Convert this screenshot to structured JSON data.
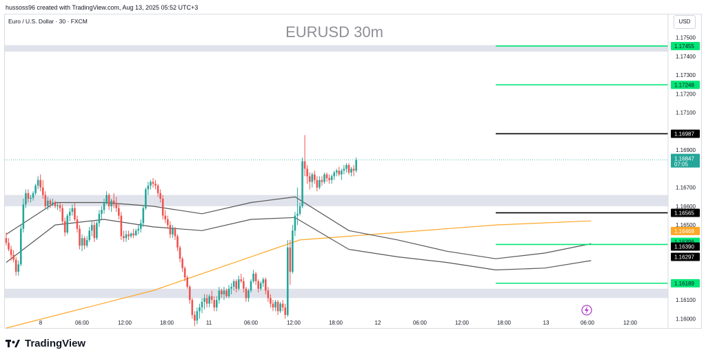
{
  "header": {
    "attribution": "hussoss96 created with TradingView.com, Aug 13, 2025 05:52 UTC+3"
  },
  "chart_header": {
    "symbol_line": "Euro / U.S. Dollar · 30 · FXCM",
    "title": "EURUSD 30m",
    "currency_button": "USD"
  },
  "footer": {
    "brand": "TradingView"
  },
  "chart_data": {
    "type": "candlestick",
    "title": "EURUSD 30m",
    "y_tick_labels": [
      "1.16000",
      "1.16100",
      "1.16500",
      "1.16600",
      "1.16700",
      "1.16900",
      "1.17100",
      "1.17200",
      "1.17300",
      "1.17400",
      "1.17500"
    ],
    "x_tick_labels": [
      "8",
      "06:00",
      "12:00",
      "18:00",
      "11",
      "06:00",
      "12:00",
      "18:00",
      "12",
      "06:00",
      "12:00",
      "18:00",
      "13",
      "06:00",
      "12:00"
    ],
    "ylim": [
      1.1595,
      1.1762
    ],
    "colors": {
      "up": "#26a69a",
      "down": "#ef5350",
      "ma": "#ffa726",
      "band": "#555555",
      "zone": "#e0e3eb"
    },
    "current_price": {
      "value": "1.16847",
      "countdown": "07:05"
    },
    "price_levels": [
      {
        "value": "1.17455",
        "color": "#00e676",
        "text_color": "#131722"
      },
      {
        "value": "1.17248",
        "color": "#00e676",
        "text_color": "#131722"
      },
      {
        "value": "1.16987",
        "color": "#000000",
        "text_color": "#ffffff"
      },
      {
        "value": "1.16565",
        "color": "#000000",
        "text_color": "#ffffff"
      },
      {
        "value": "1.16396",
        "color": "#00e676",
        "text_color": "#131722"
      },
      {
        "value": "1.16189",
        "color": "#00e676",
        "text_color": "#131722"
      }
    ],
    "series_labels": [
      {
        "value": "1.16468",
        "color": "#ffa726",
        "text_color": "#ffffff"
      },
      {
        "value": "1.16390",
        "color": "#000000",
        "text_color": "#ffffff"
      },
      {
        "value": "1.16297",
        "color": "#000000",
        "text_color": "#ffffff"
      }
    ],
    "zones": [
      {
        "from": 1.17425,
        "to": 1.1746
      },
      {
        "from": 1.166,
        "to": 1.1666
      },
      {
        "from": 1.1611,
        "to": 1.1616
      }
    ],
    "candles": [
      [
        1.1643,
        1.1646,
        1.1639,
        1.16405
      ],
      [
        1.16405,
        1.1643,
        1.1636,
        1.1637
      ],
      [
        1.1637,
        1.1639,
        1.1631,
        1.1634
      ],
      [
        1.1634,
        1.16365,
        1.163,
        1.16315
      ],
      [
        1.16315,
        1.1633,
        1.1623,
        1.1625
      ],
      [
        1.1625,
        1.1631,
        1.1623,
        1.1629
      ],
      [
        1.1629,
        1.165,
        1.1628,
        1.1648
      ],
      [
        1.1648,
        1.1664,
        1.1646,
        1.1661
      ],
      [
        1.1661,
        1.1669,
        1.1659,
        1.1667
      ],
      [
        1.1667,
        1.1669,
        1.1662,
        1.1664
      ],
      [
        1.1664,
        1.1666,
        1.1662,
        1.16645
      ],
      [
        1.16645,
        1.1668,
        1.1663,
        1.1667
      ],
      [
        1.1667,
        1.1672,
        1.1666,
        1.1671
      ],
      [
        1.1671,
        1.1676,
        1.1669,
        1.1674
      ],
      [
        1.1674,
        1.1677,
        1.1668,
        1.167
      ],
      [
        1.167,
        1.1674,
        1.1664,
        1.1666
      ],
      [
        1.1666,
        1.1668,
        1.1659,
        1.166
      ],
      [
        1.166,
        1.1665,
        1.1658,
        1.1663
      ],
      [
        1.1663,
        1.1664,
        1.1659,
        1.1661
      ],
      [
        1.1661,
        1.1664,
        1.166,
        1.1662
      ],
      [
        1.1662,
        1.1663,
        1.1659,
        1.166
      ],
      [
        1.166,
        1.1662,
        1.1658,
        1.16605
      ],
      [
        1.16605,
        1.1662,
        1.1657,
        1.1659
      ],
      [
        1.1659,
        1.1661,
        1.165,
        1.1652
      ],
      [
        1.1652,
        1.1654,
        1.1644,
        1.1646
      ],
      [
        1.1646,
        1.1656,
        1.1645,
        1.1655
      ],
      [
        1.1655,
        1.1659,
        1.1652,
        1.1657
      ],
      [
        1.1657,
        1.1661,
        1.1655,
        1.1659
      ],
      [
        1.1659,
        1.1662,
        1.1652,
        1.1653
      ],
      [
        1.1653,
        1.1655,
        1.1646,
        1.1648
      ],
      [
        1.1648,
        1.165,
        1.1637,
        1.1639
      ],
      [
        1.1639,
        1.1645,
        1.1636,
        1.1643
      ],
      [
        1.1643,
        1.1644,
        1.1637,
        1.1639
      ],
      [
        1.1639,
        1.1644,
        1.1638,
        1.1642
      ],
      [
        1.1642,
        1.1649,
        1.1641,
        1.1647
      ],
      [
        1.1647,
        1.1652,
        1.1644,
        1.165
      ],
      [
        1.165,
        1.1652,
        1.1641,
        1.1643
      ],
      [
        1.1643,
        1.1652,
        1.1642,
        1.1651
      ],
      [
        1.1651,
        1.1658,
        1.1649,
        1.1656
      ],
      [
        1.1656,
        1.166,
        1.1653,
        1.1658
      ],
      [
        1.1658,
        1.1664,
        1.1656,
        1.1662
      ],
      [
        1.1662,
        1.1668,
        1.1661,
        1.1666
      ],
      [
        1.1666,
        1.1667,
        1.1658,
        1.166
      ],
      [
        1.166,
        1.1664,
        1.1657,
        1.1663
      ],
      [
        1.1663,
        1.1667,
        1.1659,
        1.1661
      ],
      [
        1.1661,
        1.1665,
        1.1657,
        1.1659
      ],
      [
        1.1659,
        1.1661,
        1.1653,
        1.1655
      ],
      [
        1.1655,
        1.1657,
        1.1642,
        1.1644
      ],
      [
        1.1644,
        1.1647,
        1.1641,
        1.1643
      ],
      [
        1.1643,
        1.1647,
        1.1641,
        1.1645
      ],
      [
        1.1645,
        1.1647,
        1.1642,
        1.1644
      ],
      [
        1.1644,
        1.1646,
        1.1643,
        1.16455
      ],
      [
        1.16455,
        1.1648,
        1.1643,
        1.16445
      ],
      [
        1.16445,
        1.1648,
        1.1644,
        1.1647
      ],
      [
        1.1647,
        1.165,
        1.1645,
        1.1648
      ],
      [
        1.1648,
        1.1653,
        1.1646,
        1.1651
      ],
      [
        1.1651,
        1.166,
        1.1649,
        1.1659
      ],
      [
        1.1659,
        1.167,
        1.1658,
        1.1669
      ],
      [
        1.1669,
        1.1673,
        1.1666,
        1.1671
      ],
      [
        1.1671,
        1.1674,
        1.1669,
        1.1673
      ],
      [
        1.1673,
        1.1675,
        1.167,
        1.1672
      ],
      [
        1.1672,
        1.1674,
        1.1669,
        1.1671
      ],
      [
        1.1671,
        1.1672,
        1.1665,
        1.1667
      ],
      [
        1.1667,
        1.1669,
        1.1662,
        1.1664
      ],
      [
        1.1664,
        1.1666,
        1.1653,
        1.1655
      ],
      [
        1.1655,
        1.1658,
        1.1651,
        1.1653
      ],
      [
        1.1653,
        1.1655,
        1.1648,
        1.165
      ],
      [
        1.165,
        1.1652,
        1.1643,
        1.1645
      ],
      [
        1.1645,
        1.165,
        1.1643,
        1.1648
      ],
      [
        1.1648,
        1.1649,
        1.1642,
        1.1644
      ],
      [
        1.1644,
        1.1645,
        1.1636,
        1.1638
      ],
      [
        1.1638,
        1.1639,
        1.163,
        1.1632
      ],
      [
        1.1632,
        1.1633,
        1.1625,
        1.1627
      ],
      [
        1.1627,
        1.1628,
        1.162,
        1.1622
      ],
      [
        1.1622,
        1.1623,
        1.1616,
        1.1617
      ],
      [
        1.1617,
        1.1618,
        1.1608,
        1.161
      ],
      [
        1.161,
        1.1611,
        1.16,
        1.1602
      ],
      [
        1.1602,
        1.1604,
        1.1596,
        1.1599
      ],
      [
        1.1599,
        1.1606,
        1.1597,
        1.1604
      ],
      [
        1.1604,
        1.1608,
        1.16,
        1.1606
      ],
      [
        1.1606,
        1.1611,
        1.1603,
        1.1609
      ],
      [
        1.1609,
        1.1613,
        1.1605,
        1.1611
      ],
      [
        1.1611,
        1.1613,
        1.1606,
        1.1608
      ],
      [
        1.1608,
        1.1613,
        1.1606,
        1.1612
      ],
      [
        1.1612,
        1.1615,
        1.1608,
        1.161
      ],
      [
        1.161,
        1.1612,
        1.1604,
        1.1606
      ],
      [
        1.1606,
        1.1612,
        1.1604,
        1.161
      ],
      [
        1.161,
        1.1617,
        1.1608,
        1.1615
      ],
      [
        1.1615,
        1.1616,
        1.1611,
        1.1613
      ],
      [
        1.1613,
        1.1617,
        1.161,
        1.1615
      ],
      [
        1.1615,
        1.1616,
        1.1611,
        1.1612
      ],
      [
        1.1612,
        1.1618,
        1.1611,
        1.1616
      ],
      [
        1.1616,
        1.1619,
        1.1613,
        1.1617
      ],
      [
        1.1617,
        1.1621,
        1.1615,
        1.162
      ],
      [
        1.162,
        1.1621,
        1.1614,
        1.1616
      ],
      [
        1.1616,
        1.1623,
        1.1615,
        1.1621
      ],
      [
        1.1621,
        1.1624,
        1.1619,
        1.162
      ],
      [
        1.162,
        1.1622,
        1.1614,
        1.1616
      ],
      [
        1.1616,
        1.1617,
        1.1609,
        1.1611
      ],
      [
        1.1611,
        1.1616,
        1.1609,
        1.1615
      ],
      [
        1.1615,
        1.1621,
        1.1614,
        1.162
      ],
      [
        1.162,
        1.1626,
        1.1619,
        1.1624
      ],
      [
        1.1624,
        1.1625,
        1.1618,
        1.162
      ],
      [
        1.162,
        1.1621,
        1.1614,
        1.1616
      ],
      [
        1.1616,
        1.162,
        1.1615,
        1.1619
      ],
      [
        1.1619,
        1.1622,
        1.1617,
        1.1621
      ],
      [
        1.1621,
        1.1622,
        1.1613,
        1.1615
      ],
      [
        1.1615,
        1.1617,
        1.1609,
        1.1611
      ],
      [
        1.1611,
        1.1613,
        1.1606,
        1.1608
      ],
      [
        1.1608,
        1.161,
        1.1604,
        1.1606
      ],
      [
        1.1606,
        1.161,
        1.1604,
        1.1609
      ],
      [
        1.1609,
        1.161,
        1.1602,
        1.1604
      ],
      [
        1.1604,
        1.1609,
        1.1603,
        1.1608
      ],
      [
        1.1608,
        1.161,
        1.1604,
        1.1606
      ],
      [
        1.1606,
        1.1608,
        1.16,
        1.1602
      ],
      [
        1.1602,
        1.1642,
        1.1601,
        1.1638
      ],
      [
        1.1638,
        1.1642,
        1.1618,
        1.1625
      ],
      [
        1.1625,
        1.165,
        1.1624,
        1.1647
      ],
      [
        1.1647,
        1.1657,
        1.1644,
        1.1655
      ],
      [
        1.1655,
        1.167,
        1.165,
        1.1656
      ],
      [
        1.1656,
        1.1662,
        1.1655,
        1.166
      ],
      [
        1.166,
        1.1686,
        1.1659,
        1.1684
      ],
      [
        1.1684,
        1.1698,
        1.1676,
        1.168
      ],
      [
        1.168,
        1.1682,
        1.1672,
        1.1676
      ],
      [
        1.1676,
        1.1678,
        1.1669,
        1.1673
      ],
      [
        1.1673,
        1.1678,
        1.167,
        1.1677
      ],
      [
        1.1677,
        1.1679,
        1.1672,
        1.1674
      ],
      [
        1.1674,
        1.1676,
        1.1668,
        1.167
      ],
      [
        1.167,
        1.1676,
        1.1669,
        1.1674
      ],
      [
        1.1674,
        1.1676,
        1.1671,
        1.1673
      ],
      [
        1.1673,
        1.1678,
        1.1672,
        1.1677
      ],
      [
        1.1677,
        1.1678,
        1.1673,
        1.1675
      ],
      [
        1.1675,
        1.1677,
        1.1672,
        1.1674
      ],
      [
        1.1674,
        1.1677,
        1.1672,
        1.1676
      ],
      [
        1.1676,
        1.1679,
        1.1674,
        1.1678
      ],
      [
        1.1678,
        1.168,
        1.1676,
        1.1679
      ],
      [
        1.1679,
        1.1681,
        1.1676,
        1.1677
      ],
      [
        1.1677,
        1.168,
        1.1674,
        1.1679
      ],
      [
        1.1679,
        1.1682,
        1.1677,
        1.168
      ],
      [
        1.168,
        1.1683,
        1.1678,
        1.1682
      ],
      [
        1.1682,
        1.1683,
        1.1677,
        1.1678
      ],
      [
        1.1678,
        1.1681,
        1.1676,
        1.168
      ],
      [
        1.168,
        1.1682,
        1.1676,
        1.1679
      ],
      [
        1.1679,
        1.1686,
        1.1678,
        1.16847
      ]
    ],
    "moving_average": [
      [
        0,
        1.1595
      ],
      [
        60,
        1.1615
      ],
      [
        120,
        1.1642
      ],
      [
        160,
        1.1646
      ],
      [
        200,
        1.165
      ],
      [
        239,
        1.16522
      ]
    ],
    "upper_band": [
      [
        0,
        1.1645
      ],
      [
        20,
        1.1662
      ],
      [
        40,
        1.1662
      ],
      [
        60,
        1.166
      ],
      [
        80,
        1.1656
      ],
      [
        100,
        1.1662
      ],
      [
        118,
        1.1665
      ],
      [
        140,
        1.1647
      ],
      [
        160,
        1.1642
      ],
      [
        180,
        1.1636
      ],
      [
        200,
        1.1632
      ],
      [
        220,
        1.1635
      ],
      [
        239,
        1.164
      ]
    ],
    "lower_band": [
      [
        0,
        1.163
      ],
      [
        20,
        1.165
      ],
      [
        40,
        1.1653
      ],
      [
        60,
        1.1649
      ],
      [
        80,
        1.1647
      ],
      [
        100,
        1.1653
      ],
      [
        118,
        1.1654
      ],
      [
        140,
        1.1637
      ],
      [
        160,
        1.1633
      ],
      [
        180,
        1.163
      ],
      [
        200,
        1.1626
      ],
      [
        220,
        1.1627
      ],
      [
        239,
        1.1631
      ]
    ]
  }
}
